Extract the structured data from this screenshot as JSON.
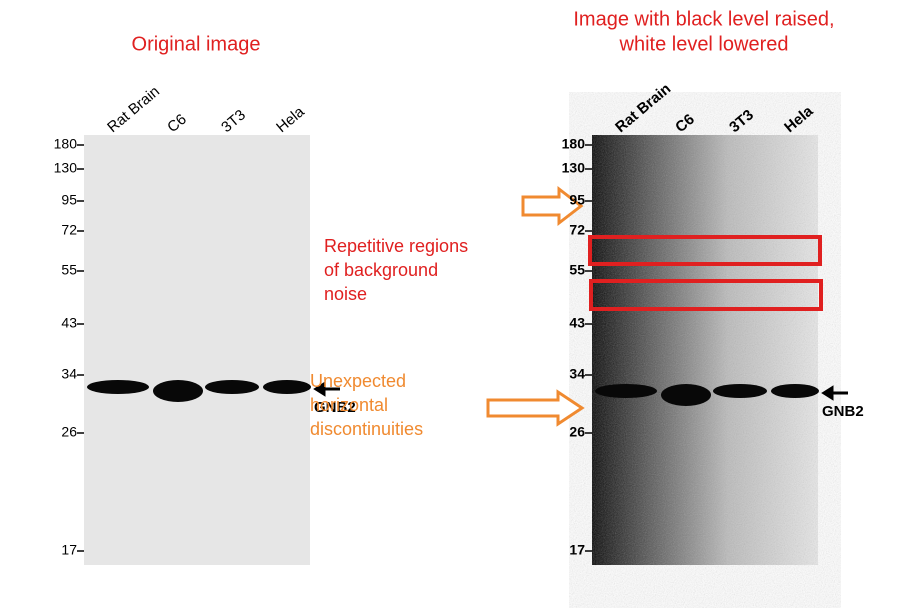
{
  "panels": [
    {
      "title": [
        "Original image"
      ],
      "lanes": [
        "Rat Brain",
        "C6",
        "3T3",
        "Hela"
      ],
      "markers": [
        180,
        130,
        95,
        72,
        55,
        43,
        34,
        26,
        17
      ],
      "band_label": "GNB2"
    },
    {
      "title": [
        "Image with black level raised,",
        "white level lowered"
      ],
      "lanes": [
        "Rat Brain",
        "C6",
        "3T3",
        "Hela"
      ],
      "markers": [
        180,
        130,
        95,
        72,
        55,
        43,
        34,
        26,
        17
      ],
      "band_label": "GNB2"
    }
  ],
  "annotations": {
    "noise": [
      "Repetitive regions",
      "of background",
      "noise"
    ],
    "discontinuities": [
      "Unexpected",
      "horizontal",
      "discontinuities"
    ]
  }
}
